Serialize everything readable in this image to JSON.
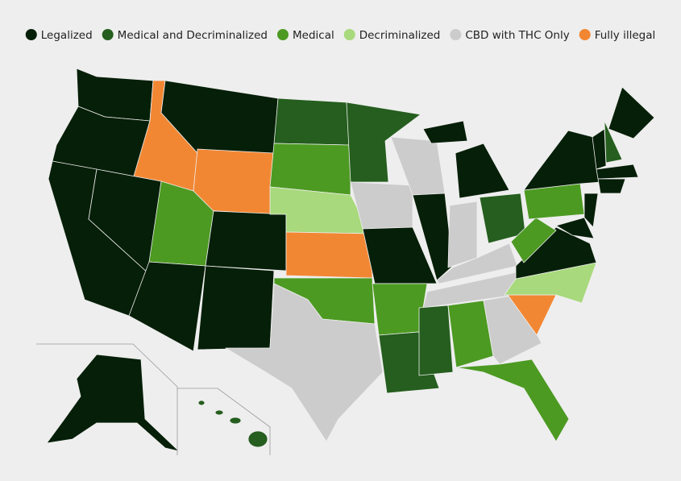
{
  "legend": [
    {
      "label": "Legalized",
      "color": "#061f08"
    },
    {
      "label": "Medical and Decriminalized",
      "color": "#255e1e"
    },
    {
      "label": "Medical",
      "color": "#4c9a22"
    },
    {
      "label": "Decriminalized",
      "color": "#a8d97c"
    },
    {
      "label": "CBD with THC Only",
      "color": "#cccccc"
    },
    {
      "label": "Fully illegal",
      "color": "#f28733"
    }
  ]
}
